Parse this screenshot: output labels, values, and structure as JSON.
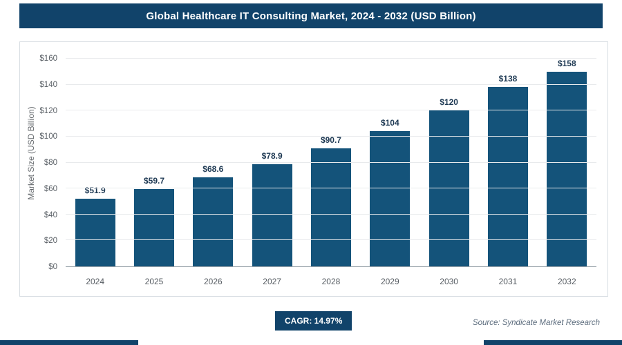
{
  "header": {
    "title": "Global Healthcare IT Consulting Market, 2024 - 2032 (USD Billion)"
  },
  "footer": {
    "cagr_label": "CAGR: 14.97%",
    "source": "Source: Syndicate Market Research"
  },
  "colors": {
    "header_bg": "#11436a",
    "bar": "#14537a",
    "value_label": "#1f3a54",
    "gridline": "#e8eaec",
    "axis_text": "#5a6066"
  },
  "chart_data": {
    "type": "bar",
    "title": "Global Healthcare IT Consulting Market, 2024 - 2032 (USD Billion)",
    "categories": [
      "2024",
      "2025",
      "2026",
      "2027",
      "2028",
      "2029",
      "2030",
      "2031",
      "2032"
    ],
    "values": [
      51.9,
      59.7,
      68.6,
      78.9,
      90.7,
      104,
      120,
      138,
      158
    ],
    "value_labels": [
      "$51.9",
      "$59.7",
      "$68.6",
      "$78.9",
      "$90.7",
      "$104",
      "$120",
      "$138",
      "$158"
    ],
    "xlabel": "",
    "ylabel": "Market Size (USD Billion)",
    "ylim": [
      0,
      160
    ],
    "ytick_step": 20,
    "ytick_labels": [
      "$0",
      "$20",
      "$40",
      "$60",
      "$80",
      "$100",
      "$120",
      "$140",
      "$160"
    ],
    "grid": true,
    "legend": false
  }
}
